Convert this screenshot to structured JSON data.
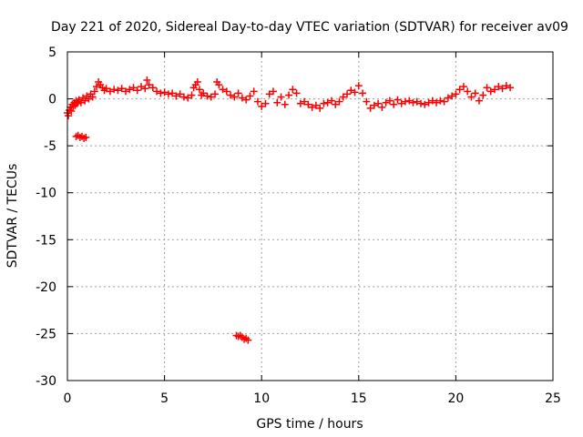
{
  "chart_data": {
    "type": "scatter",
    "title": "Day 221 of 2020, Sidereal Day-to-day VTEC variation (SDTVAR) for receiver av09",
    "xlabel": "GPS time / hours",
    "ylabel": "SDTVAR / TECUs",
    "xlim": [
      0,
      25
    ],
    "ylim": [
      -30,
      5
    ],
    "grid": true,
    "xticks": [
      0,
      5,
      10,
      15,
      20,
      25
    ],
    "yticks": [
      -30,
      -25,
      -20,
      -15,
      -10,
      -5,
      0,
      5
    ],
    "xtick_labels": [
      "0",
      "5",
      "10",
      "15",
      "20",
      "25"
    ],
    "ytick_labels": [
      "-30",
      "-25",
      "-20",
      "-15",
      "-10",
      "-5",
      "0",
      "5"
    ],
    "marker": "plus",
    "series": [
      {
        "name": "SDTVAR",
        "color": "#ff0000",
        "points": [
          [
            0.0,
            -1.5
          ],
          [
            0.05,
            -1.8
          ],
          [
            0.1,
            -1.2
          ],
          [
            0.15,
            -0.9
          ],
          [
            0.2,
            -1.3
          ],
          [
            0.25,
            -0.6
          ],
          [
            0.3,
            -0.8
          ],
          [
            0.35,
            -0.4
          ],
          [
            0.4,
            -0.7
          ],
          [
            0.45,
            -0.2
          ],
          [
            0.5,
            -0.5
          ],
          [
            0.55,
            -0.3
          ],
          [
            0.6,
            -0.1
          ],
          [
            0.7,
            -0.4
          ],
          [
            0.8,
            0.1
          ],
          [
            0.9,
            -0.2
          ],
          [
            1.0,
            0.3
          ],
          [
            1.1,
            0.0
          ],
          [
            1.2,
            0.5
          ],
          [
            1.3,
            0.2
          ],
          [
            1.4,
            0.8
          ],
          [
            1.5,
            1.3
          ],
          [
            1.6,
            1.8
          ],
          [
            1.7,
            1.5
          ],
          [
            1.8,
            1.2
          ],
          [
            1.9,
            0.9
          ],
          [
            2.0,
            1.1
          ],
          [
            2.2,
            0.8
          ],
          [
            2.4,
            1.0
          ],
          [
            2.6,
            0.9
          ],
          [
            2.8,
            1.1
          ],
          [
            3.0,
            0.8
          ],
          [
            3.2,
            1.0
          ],
          [
            3.4,
            1.2
          ],
          [
            3.6,
            0.9
          ],
          [
            3.8,
            1.3
          ],
          [
            4.0,
            1.1
          ],
          [
            4.1,
            2.0
          ],
          [
            4.2,
            1.5
          ],
          [
            4.4,
            1.2
          ],
          [
            4.6,
            0.8
          ],
          [
            4.8,
            0.6
          ],
          [
            5.0,
            0.7
          ],
          [
            5.2,
            0.5
          ],
          [
            5.4,
            0.6
          ],
          [
            5.6,
            0.3
          ],
          [
            5.8,
            0.5
          ],
          [
            6.0,
            0.2
          ],
          [
            6.2,
            0.1
          ],
          [
            6.4,
            0.4
          ],
          [
            6.5,
            1.2
          ],
          [
            6.6,
            1.5
          ],
          [
            6.7,
            1.8
          ],
          [
            6.8,
            1.0
          ],
          [
            6.9,
            0.4
          ],
          [
            7.0,
            0.6
          ],
          [
            7.2,
            0.3
          ],
          [
            7.4,
            0.2
          ],
          [
            7.6,
            0.5
          ],
          [
            7.7,
            1.8
          ],
          [
            7.8,
            1.5
          ],
          [
            8.0,
            1.0
          ],
          [
            8.2,
            0.8
          ],
          [
            8.4,
            0.4
          ],
          [
            8.6,
            0.2
          ],
          [
            8.8,
            0.6
          ],
          [
            9.0,
            0.1
          ],
          [
            9.2,
            -0.1
          ],
          [
            9.4,
            0.3
          ],
          [
            9.6,
            0.8
          ],
          [
            9.8,
            -0.3
          ],
          [
            10.0,
            -0.8
          ],
          [
            10.2,
            -0.5
          ],
          [
            10.4,
            0.5
          ],
          [
            10.6,
            0.8
          ],
          [
            10.8,
            -0.4
          ],
          [
            11.0,
            0.2
          ],
          [
            11.2,
            -0.6
          ],
          [
            11.4,
            0.4
          ],
          [
            11.6,
            1.0
          ],
          [
            11.8,
            0.6
          ],
          [
            12.0,
            -0.5
          ],
          [
            12.2,
            -0.3
          ],
          [
            12.4,
            -0.6
          ],
          [
            12.6,
            -0.9
          ],
          [
            12.8,
            -0.7
          ],
          [
            13.0,
            -1.0
          ],
          [
            13.2,
            -0.5
          ],
          [
            13.4,
            -0.4
          ],
          [
            13.6,
            -0.2
          ],
          [
            13.8,
            -0.6
          ],
          [
            14.0,
            -0.3
          ],
          [
            14.2,
            0.2
          ],
          [
            14.4,
            0.5
          ],
          [
            14.6,
            0.9
          ],
          [
            14.8,
            0.7
          ],
          [
            15.0,
            1.4
          ],
          [
            15.2,
            0.6
          ],
          [
            15.4,
            -0.3
          ],
          [
            15.6,
            -1.0
          ],
          [
            15.8,
            -0.7
          ],
          [
            16.0,
            -0.5
          ],
          [
            16.2,
            -0.9
          ],
          [
            16.4,
            -0.4
          ],
          [
            16.6,
            -0.2
          ],
          [
            16.8,
            -0.6
          ],
          [
            17.0,
            -0.1
          ],
          [
            17.2,
            -0.5
          ],
          [
            17.4,
            -0.3
          ],
          [
            17.6,
            -0.2
          ],
          [
            17.8,
            -0.4
          ],
          [
            18.0,
            -0.3
          ],
          [
            18.2,
            -0.5
          ],
          [
            18.4,
            -0.6
          ],
          [
            18.6,
            -0.4
          ],
          [
            18.8,
            -0.2
          ],
          [
            19.0,
            -0.4
          ],
          [
            19.2,
            -0.2
          ],
          [
            19.4,
            -0.3
          ],
          [
            19.6,
            0.1
          ],
          [
            19.8,
            0.3
          ],
          [
            20.0,
            0.5
          ],
          [
            20.2,
            1.0
          ],
          [
            20.4,
            1.3
          ],
          [
            20.6,
            0.8
          ],
          [
            20.8,
            0.2
          ],
          [
            21.0,
            0.6
          ],
          [
            21.2,
            -0.2
          ],
          [
            21.4,
            0.4
          ],
          [
            21.6,
            1.2
          ],
          [
            21.8,
            0.8
          ],
          [
            22.0,
            1.0
          ],
          [
            22.2,
            1.3
          ],
          [
            22.4,
            1.1
          ],
          [
            22.6,
            1.4
          ],
          [
            22.8,
            1.2
          ],
          [
            0.45,
            -4.0
          ],
          [
            0.55,
            -3.9
          ],
          [
            0.65,
            -4.1
          ],
          [
            0.75,
            -4.0
          ],
          [
            0.85,
            -4.2
          ],
          [
            0.95,
            -4.1
          ],
          [
            8.7,
            -25.2
          ],
          [
            8.8,
            -25.3
          ],
          [
            8.9,
            -25.2
          ],
          [
            9.0,
            -25.4
          ],
          [
            9.1,
            -25.6
          ],
          [
            9.2,
            -25.5
          ],
          [
            9.3,
            -25.7
          ]
        ]
      }
    ]
  }
}
